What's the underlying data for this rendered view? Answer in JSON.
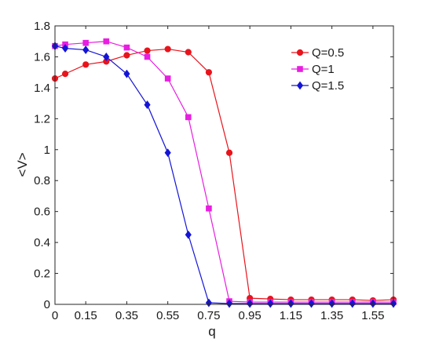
{
  "chart_data": {
    "type": "line",
    "xlabel": "q",
    "ylabel": "<V>",
    "xlim": [
      0,
      1.65
    ],
    "ylim": [
      0,
      1.8
    ],
    "xticks": [
      "0",
      "0.15",
      "0.35",
      "0.55",
      "0.75",
      "0.95",
      "1.15",
      "1.35",
      "1.55"
    ],
    "xtick_values": [
      0,
      0.15,
      0.35,
      0.55,
      0.75,
      0.95,
      1.15,
      1.35,
      1.55
    ],
    "yticks": [
      "0",
      "0.2",
      "0.4",
      "0.6",
      "0.8",
      "1",
      "1.2",
      "1.4",
      "1.6",
      "1.8"
    ],
    "ytick_values": [
      0,
      0.2,
      0.4,
      0.6,
      0.8,
      1.0,
      1.2,
      1.4,
      1.6,
      1.8
    ],
    "grid": false,
    "legend_position": "top-right",
    "series": [
      {
        "name": "Q=0.5",
        "color": "#e8141c",
        "marker": "circle",
        "x": [
          0,
          0.05,
          0.15,
          0.25,
          0.35,
          0.45,
          0.55,
          0.65,
          0.75,
          0.85,
          0.95,
          1.05,
          1.15,
          1.25,
          1.35,
          1.45,
          1.55,
          1.65
        ],
        "y": [
          1.46,
          1.49,
          1.55,
          1.57,
          1.61,
          1.64,
          1.65,
          1.63,
          1.5,
          0.98,
          0.04,
          0.035,
          0.03,
          0.03,
          0.03,
          0.03,
          0.025,
          0.03
        ]
      },
      {
        "name": "Q=1",
        "color": "#e81ee0",
        "marker": "square",
        "x": [
          0,
          0.05,
          0.15,
          0.25,
          0.35,
          0.45,
          0.55,
          0.65,
          0.75,
          0.85,
          0.95,
          1.05,
          1.15,
          1.25,
          1.35,
          1.45,
          1.55,
          1.65
        ],
        "y": [
          1.67,
          1.68,
          1.69,
          1.7,
          1.66,
          1.6,
          1.46,
          1.21,
          0.62,
          0.02,
          0.015,
          0.015,
          0.015,
          0.015,
          0.015,
          0.015,
          0.015,
          0.015
        ]
      },
      {
        "name": "Q=1.5",
        "color": "#1414d8",
        "marker": "diamond",
        "x": [
          0,
          0.05,
          0.15,
          0.25,
          0.35,
          0.45,
          0.55,
          0.65,
          0.75,
          0.85,
          0.95,
          1.05,
          1.15,
          1.25,
          1.35,
          1.45,
          1.55,
          1.65
        ],
        "y": [
          1.67,
          1.655,
          1.645,
          1.6,
          1.49,
          1.29,
          0.98,
          0.45,
          0.01,
          0.005,
          0.005,
          0.005,
          0.005,
          0.005,
          0.005,
          0.005,
          0.005,
          0.005
        ]
      }
    ]
  }
}
